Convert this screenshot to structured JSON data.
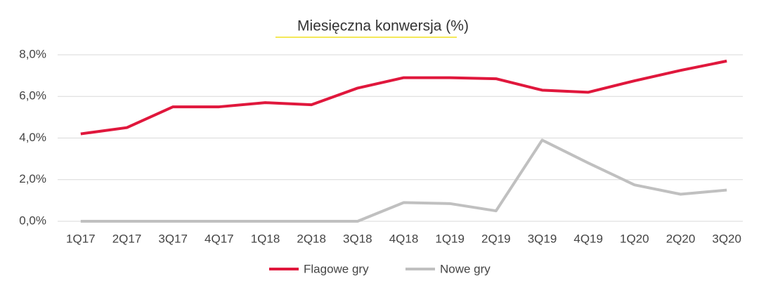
{
  "chart_data": {
    "type": "line",
    "title": "Miesięczna konwersja (%)",
    "categories": [
      "1Q17",
      "2Q17",
      "3Q17",
      "4Q17",
      "1Q18",
      "2Q18",
      "3Q18",
      "4Q18",
      "1Q19",
      "2Q19",
      "3Q19",
      "4Q19",
      "1Q20",
      "2Q20",
      "3Q20"
    ],
    "series": [
      {
        "name": "Flagowe gry",
        "color": "#e0173c",
        "values": [
          4.2,
          4.5,
          5.5,
          5.5,
          5.7,
          5.6,
          6.4,
          6.9,
          6.9,
          6.85,
          6.3,
          6.2,
          6.75,
          7.25,
          7.7
        ]
      },
      {
        "name": "Nowe gry",
        "color": "#c0c0c0",
        "values": [
          0,
          0,
          0,
          0,
          0,
          0,
          0,
          0.9,
          0.85,
          0.5,
          3.9,
          2.8,
          1.75,
          1.3,
          1.5
        ]
      }
    ],
    "ylim": [
      0,
      8
    ],
    "yticks": [
      {
        "value": 0,
        "label": "0,0%"
      },
      {
        "value": 2,
        "label": "2,0%"
      },
      {
        "value": 4,
        "label": "4,0%"
      },
      {
        "value": 6,
        "label": "6,0%"
      },
      {
        "value": 8,
        "label": "8,0%"
      }
    ],
    "grid": true,
    "legend": "bottom"
  }
}
